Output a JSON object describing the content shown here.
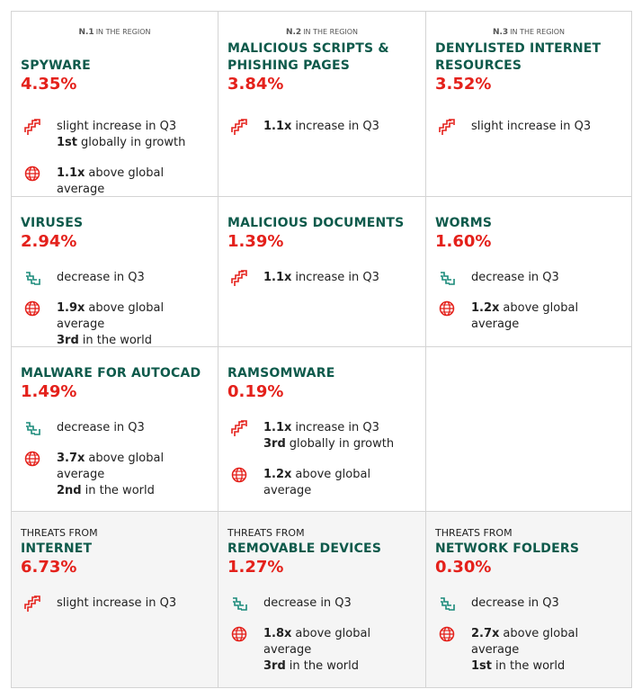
{
  "rows": [
    [
      {
        "rank": {
          "number": "N.1",
          "text": "IN THE REGION"
        },
        "title": [
          "SPYWARE"
        ],
        "value": "4.35%",
        "items": [
          {
            "icon": "up",
            "lines": [
              {
                "text": "slight increase in Q3"
              },
              {
                "bold": "1st",
                "text": "globally in growth"
              }
            ]
          },
          {
            "icon": "globe",
            "lines": [
              {
                "bold": "1.1x",
                "text": "above global average"
              }
            ]
          }
        ]
      },
      {
        "rank": {
          "number": "N.2",
          "text": "IN THE REGION"
        },
        "title": [
          "MALICIOUS SCRIPTS &",
          "PHISHING PAGES"
        ],
        "value": "3.84%",
        "items": [
          {
            "icon": "up",
            "lines": [
              {
                "bold": "1.1x",
                "text": "increase in Q3"
              }
            ]
          }
        ]
      },
      {
        "rank": {
          "number": "N.3",
          "text": "IN THE REGION"
        },
        "title": [
          "DENYLISTED INTERNET",
          "RESOURCES"
        ],
        "value": "3.52%",
        "items": [
          {
            "icon": "up",
            "lines": [
              {
                "text": "slight increase in Q3"
              }
            ]
          }
        ]
      }
    ],
    [
      {
        "title": [
          "VIRUSES"
        ],
        "value": "2.94%",
        "items": [
          {
            "icon": "down",
            "lines": [
              {
                "text": "decrease in Q3"
              }
            ]
          },
          {
            "icon": "globe",
            "lines": [
              {
                "bold": "1.9x",
                "text": "above global average"
              },
              {
                "bold": "3rd",
                "text": "in the world"
              }
            ]
          }
        ]
      },
      {
        "title": [
          "MALICIOUS DOCUMENTS"
        ],
        "value": "1.39%",
        "items": [
          {
            "icon": "up",
            "lines": [
              {
                "bold": "1.1x",
                "text": "increase in Q3"
              }
            ]
          }
        ]
      },
      {
        "title": [
          "WORMS"
        ],
        "value": "1.60%",
        "items": [
          {
            "icon": "down",
            "lines": [
              {
                "text": "decrease in Q3"
              }
            ]
          },
          {
            "icon": "globe",
            "lines": [
              {
                "bold": "1.2x",
                "text": "above global average"
              }
            ]
          }
        ]
      }
    ],
    [
      {
        "title": [
          "MALWARE FOR AUTOCAD"
        ],
        "value": "1.49%",
        "items": [
          {
            "icon": "down",
            "lines": [
              {
                "text": "decrease in Q3"
              }
            ]
          },
          {
            "icon": "globe",
            "lines": [
              {
                "bold": "3.7x",
                "text": "above global average"
              },
              {
                "bold": "2nd",
                "text": "in the world"
              }
            ]
          }
        ]
      },
      {
        "title": [
          "RAMSOMWARE"
        ],
        "value": "0.19%",
        "items": [
          {
            "icon": "up",
            "lines": [
              {
                "bold": "1.1x",
                "text": "increase in Q3"
              },
              {
                "bold": "3rd",
                "text": "globally in growth"
              }
            ]
          },
          {
            "icon": "globe",
            "lines": [
              {
                "bold": "1.2x",
                "text": "above global average"
              }
            ]
          }
        ]
      }
    ],
    [
      {
        "kicker": "THREATS FROM",
        "title": [
          "INTERNET"
        ],
        "value": "6.73%",
        "items": [
          {
            "icon": "up",
            "lines": [
              {
                "text": "slight increase in Q3"
              }
            ]
          }
        ]
      },
      {
        "kicker": "THREATS FROM",
        "title": [
          "REMOVABLE DEVICES"
        ],
        "value": "1.27%",
        "items": [
          {
            "icon": "down",
            "lines": [
              {
                "text": "decrease in Q3"
              }
            ]
          },
          {
            "icon": "globe",
            "lines": [
              {
                "bold": "1.8x",
                "text": "above global average"
              },
              {
                "bold": "3rd",
                "text": "in the world"
              }
            ]
          }
        ]
      },
      {
        "kicker": "THREATS FROM",
        "title": [
          "NETWORK FOLDERS"
        ],
        "value": "0.30%",
        "items": [
          {
            "icon": "down",
            "lines": [
              {
                "text": "decrease in Q3"
              }
            ]
          },
          {
            "icon": "globe",
            "lines": [
              {
                "bold": "2.7x",
                "text": "above global average"
              },
              {
                "bold": "1st",
                "text": "in the world"
              }
            ]
          }
        ]
      }
    ]
  ]
}
